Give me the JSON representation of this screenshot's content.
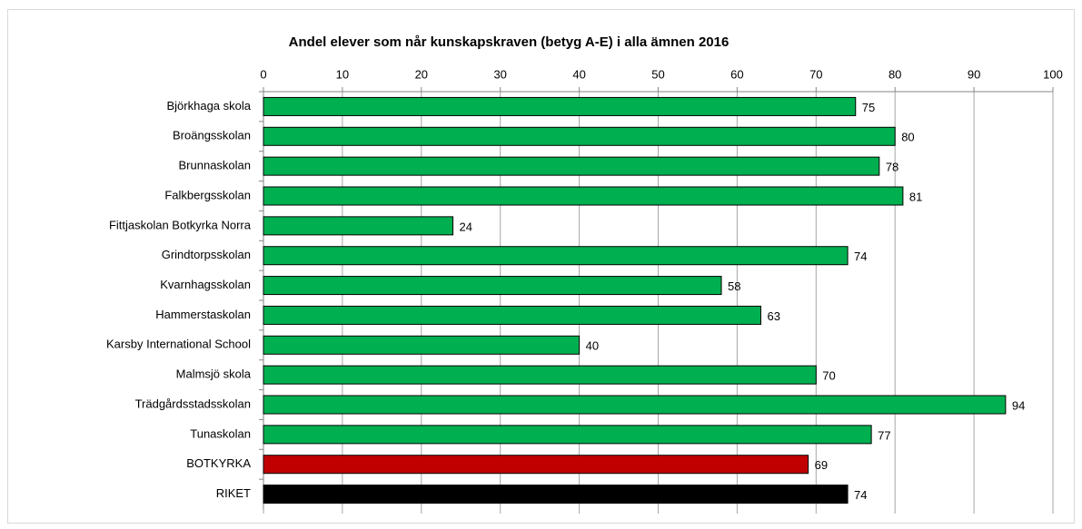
{
  "chart_data": {
    "type": "hbar",
    "title": "Andel elever som når kunskapskraven (betyg A-E) i alla ämnen 2016",
    "categories": [
      "Björkhaga skola",
      "Broängsskolan",
      "Brunnaskolan",
      "Falkbergsskolan",
      "Fittjaskolan Botkyrka Norra",
      "Grindtorpsskolan",
      "Kvarnhagsskolan",
      "Hammerstaskolan",
      "Karsby International School",
      "Malmsjö skola",
      "Trädgårdsstadsskolan",
      "Tunaskolan",
      "BOTKYRKA",
      "RIKET"
    ],
    "values": [
      75,
      80,
      78,
      81,
      24,
      74,
      58,
      63,
      40,
      70,
      94,
      77,
      69,
      74
    ],
    "colors": [
      "#00b050",
      "#00b050",
      "#00b050",
      "#00b050",
      "#00b050",
      "#00b050",
      "#00b050",
      "#00b050",
      "#00b050",
      "#00b050",
      "#00b050",
      "#00b050",
      "#c00000",
      "#000000"
    ],
    "xlim": [
      0,
      100
    ],
    "xticks": [
      0,
      10,
      20,
      30,
      40,
      50,
      60,
      70,
      80,
      90,
      100
    ],
    "grid": true
  }
}
